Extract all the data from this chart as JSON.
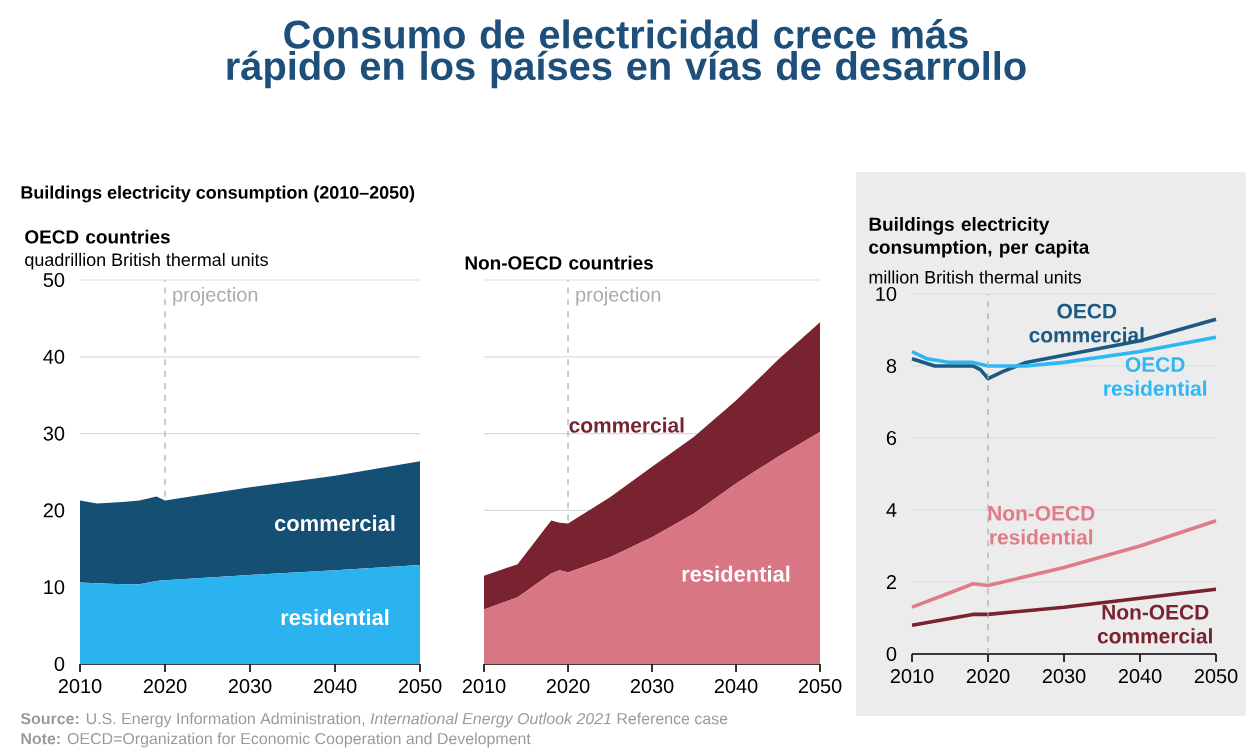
{
  "chart_data": [
    {
      "type": "other",
      "title": "Consumo de electricidad crece más rápido en los países en vías de desarrollo",
      "subtitle": "Buildings electricity consumption (2010–2050)",
      "annotations": [
        "**Source:** U.S. Energy Information Administration, *International Energy Outlook 2021* Reference case",
        "**Note:** OECD=Organization for Economic Cooperation and Development"
      ]
    },
    {
      "type": "area",
      "stacked": true,
      "title": "OECD countries",
      "ylabel": "quadrillion British thermal units",
      "x": [
        2010,
        2012,
        2015,
        2017,
        2019,
        2020,
        2030,
        2040,
        2050
      ],
      "series": [
        {
          "name": "residential",
          "color": "#2bb3f0",
          "values": [
            10.6,
            10.5,
            10.4,
            10.4,
            10.8,
            10.9,
            11.6,
            12.2,
            12.9
          ]
        },
        {
          "name": "commercial",
          "color": "#164f74",
          "values": [
            10.7,
            10.4,
            10.7,
            10.9,
            11.0,
            10.4,
            11.4,
            12.3,
            13.5
          ]
        }
      ],
      "xlim": [
        2010,
        2050
      ],
      "xticks": [
        2010,
        2020,
        2030,
        2040,
        2050
      ],
      "ylim": [
        0,
        50
      ],
      "yticks": [
        0,
        10,
        20,
        30,
        40,
        50
      ],
      "grid": "y",
      "ref_lines": [
        {
          "axis": "x",
          "value": 2020,
          "label": "projection",
          "color": "#aaaaaa",
          "line_style": "dashed"
        }
      ]
    },
    {
      "type": "area",
      "stacked": true,
      "title": "Non-OECD countries",
      "x": [
        2010,
        2014,
        2018,
        2019,
        2020,
        2025,
        2030,
        2035,
        2040,
        2045,
        2050
      ],
      "series": [
        {
          "name": "residential",
          "color": "#d97683",
          "values": [
            7.1,
            8.7,
            11.8,
            12.2,
            11.9,
            13.9,
            16.5,
            19.6,
            23.5,
            27.0,
            30.2
          ]
        },
        {
          "name": "commercial",
          "color": "#7a2330",
          "values": [
            4.4,
            4.3,
            6.9,
            6.2,
            6.4,
            7.8,
            9.2,
            10.0,
            10.8,
            12.6,
            14.3
          ]
        }
      ],
      "xlim": [
        2010,
        2050
      ],
      "xticks": [
        2010,
        2020,
        2030,
        2040,
        2050
      ],
      "ylim": [
        0,
        50
      ],
      "yticks": [
        0,
        10,
        20,
        30,
        40,
        50
      ],
      "grid": "y",
      "tick_labels": "x",
      "ref_lines": [
        {
          "axis": "x",
          "value": 2020,
          "label": "projection",
          "color": "#aaaaaa",
          "line_style": "dashed"
        }
      ]
    },
    {
      "type": "line",
      "title": "Buildings electricity consumption, per capita",
      "ylabel": "million British thermal units",
      "series": [
        {
          "name": "OECD commercial",
          "color": "#1a5a85",
          "x": [
            2010,
            2013,
            2016,
            2018,
            2019,
            2020,
            2022,
            2025,
            2030,
            2040,
            2050
          ],
          "values": [
            8.2,
            8.0,
            8.0,
            8.0,
            7.9,
            7.65,
            7.85,
            8.1,
            8.3,
            8.7,
            9.3
          ]
        },
        {
          "name": "OECD residential",
          "color": "#2fb6f3",
          "x": [
            2010,
            2012,
            2015,
            2018,
            2020,
            2025,
            2030,
            2040,
            2050
          ],
          "values": [
            8.4,
            8.2,
            8.1,
            8.1,
            8.0,
            8.0,
            8.1,
            8.4,
            8.8
          ]
        },
        {
          "name": "Non-OECD residential",
          "color": "#e07c88",
          "x": [
            2010,
            2015,
            2018,
            2020,
            2030,
            2040,
            2050
          ],
          "values": [
            1.3,
            1.7,
            1.95,
            1.9,
            2.4,
            3.0,
            3.7
          ]
        },
        {
          "name": "Non-OECD commercial",
          "color": "#7a2330",
          "x": [
            2010,
            2018,
            2020,
            2030,
            2040,
            2050
          ],
          "values": [
            0.8,
            1.1,
            1.1,
            1.3,
            1.55,
            1.8
          ]
        }
      ],
      "xlim": [
        2010,
        2050
      ],
      "xticks": [
        2010,
        2020,
        2030,
        2040,
        2050
      ],
      "ylim": [
        0,
        10
      ],
      "yticks": [
        0,
        2,
        4,
        6,
        8,
        10
      ],
      "grid": "y",
      "ref_lines": [
        {
          "axis": "x",
          "value": 2020,
          "color": "#aaaaaa",
          "line_style": "dashed"
        }
      ]
    }
  ]
}
